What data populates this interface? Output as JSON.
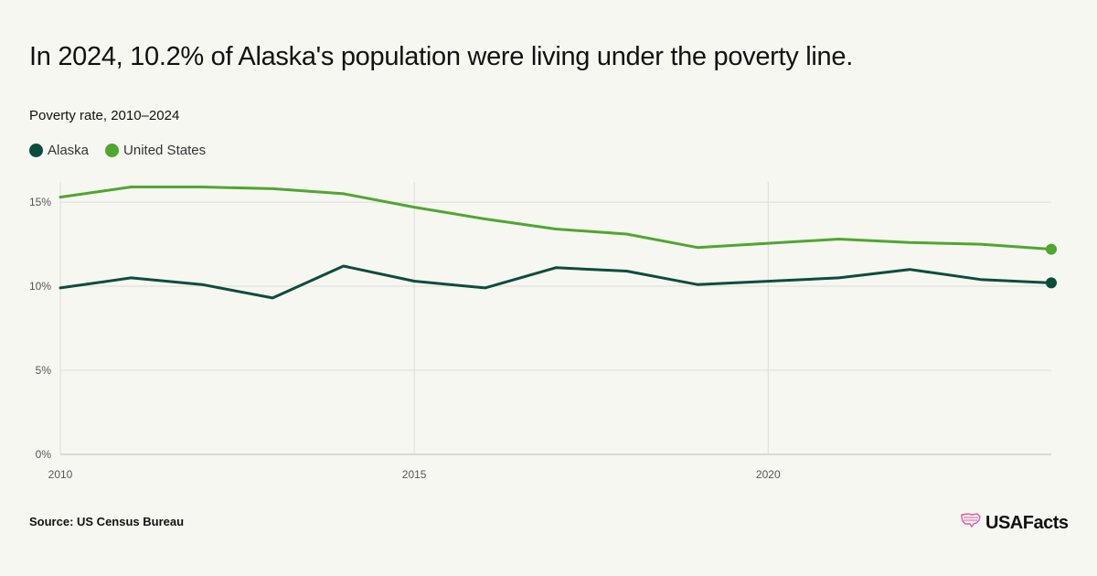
{
  "header": {
    "title": "In 2024, 10.2% of Alaska's population were living under the poverty line.",
    "subtitle": "Poverty rate, 2010–2024"
  },
  "footer": {
    "source": "Source: US Census Bureau",
    "logo_text": "USAFacts"
  },
  "colors": {
    "alaska": "#0b4d3c",
    "united_states": "#4ea72e",
    "grid": "#dcdcd6",
    "background": "#f7f7f2",
    "logo_mark": "#e05aa0"
  },
  "chart_data": {
    "type": "line",
    "title": "In 2024, 10.2% of Alaska's population were living under the poverty line.",
    "subtitle": "Poverty rate, 2010–2024",
    "xlabel": "",
    "ylabel": "",
    "x": [
      2010,
      2011,
      2012,
      2013,
      2014,
      2015,
      2016,
      2017,
      2018,
      2019,
      2020,
      2021,
      2022,
      2023,
      2024
    ],
    "xlim": [
      2010,
      2024
    ],
    "xticks": [
      2010,
      2015,
      2020
    ],
    "xtick_labels": [
      "2010",
      "2015",
      "2020"
    ],
    "ylim": [
      0,
      16.2
    ],
    "yticks": [
      0,
      5,
      10,
      15
    ],
    "ytick_labels": [
      "0%",
      "5%",
      "10%",
      "15%"
    ],
    "grid": true,
    "legend_position": "top-left",
    "series": [
      {
        "name": "Alaska",
        "color": "#0b4d3c",
        "values": [
          9.9,
          10.5,
          10.1,
          9.3,
          11.2,
          10.3,
          9.9,
          11.1,
          10.9,
          10.1,
          null,
          10.5,
          11.0,
          10.4,
          10.2
        ]
      },
      {
        "name": "United States",
        "color": "#4ea72e",
        "values": [
          15.3,
          15.9,
          15.9,
          15.8,
          15.5,
          14.7,
          14.0,
          13.4,
          13.1,
          12.3,
          null,
          12.8,
          12.6,
          12.5,
          12.2
        ]
      }
    ]
  }
}
